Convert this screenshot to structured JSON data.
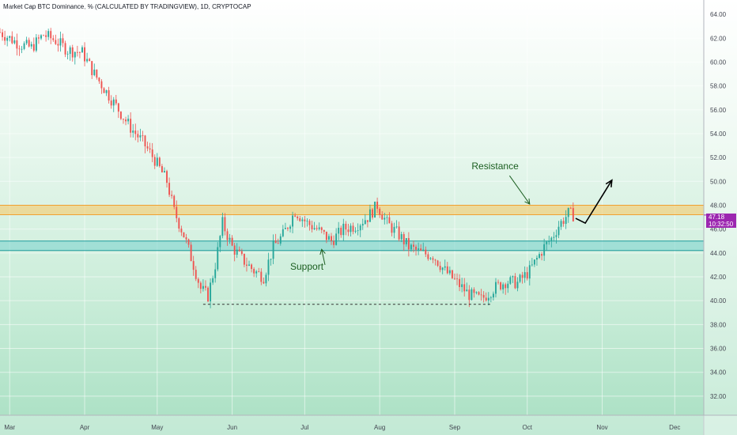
{
  "title": "Market Cap BTC Dominance, % (CALCULATED BY TRADINGVIEW), 1D, CRYPTOCAP",
  "colors": {
    "up": "#26a69a",
    "down": "#ef5350",
    "resistance_fill": "#f5c96b",
    "resistance_line": "#f0a030",
    "support_fill": "#7fd3cf",
    "support_line": "#1f9c9c",
    "price_label": "#9c27b0",
    "annotation": "#1b5e20"
  },
  "price_label": {
    "value": "47.18",
    "countdown": "10:32:50"
  },
  "chart_data": {
    "type": "candlestick",
    "x_tick_labels": [
      "Mar",
      "Apr",
      "May",
      "Jun",
      "Jul",
      "Aug",
      "Sep",
      "Oct",
      "Nov",
      "Dec"
    ],
    "y_tick_labels": [
      "32.00",
      "34.00",
      "36.00",
      "38.00",
      "40.00",
      "42.00",
      "44.00",
      "46.00",
      "48.00",
      "50.00",
      "52.00",
      "54.00",
      "56.00",
      "58.00",
      "60.00",
      "62.00",
      "64.00"
    ],
    "ylim": [
      30.4,
      65.2
    ],
    "grid": true,
    "last_value": 47.18,
    "price_path": [
      [
        "2021-02-25",
        62.5
      ],
      [
        "2021-03-01",
        62.0
      ],
      [
        "2021-03-05",
        61.5
      ],
      [
        "2021-03-10",
        61.2
      ],
      [
        "2021-03-15",
        62.3
      ],
      [
        "2021-03-20",
        61.8
      ],
      [
        "2021-03-25",
        61.0
      ],
      [
        "2021-03-31",
        60.8
      ],
      [
        "2021-04-05",
        59.0
      ],
      [
        "2021-04-10",
        57.5
      ],
      [
        "2021-04-15",
        56.0
      ],
      [
        "2021-04-20",
        54.5
      ],
      [
        "2021-04-25",
        53.3
      ],
      [
        "2021-04-30",
        51.8
      ],
      [
        "2021-05-05",
        50.0
      ],
      [
        "2021-05-08",
        47.5
      ],
      [
        "2021-05-12",
        45.5
      ],
      [
        "2021-05-16",
        43.0
      ],
      [
        "2021-05-19",
        41.0
      ],
      [
        "2021-05-22",
        40.4
      ],
      [
        "2021-05-25",
        43.0
      ],
      [
        "2021-05-28",
        46.5
      ],
      [
        "2021-06-01",
        44.5
      ],
      [
        "2021-06-05",
        43.5
      ],
      [
        "2021-06-10",
        42.5
      ],
      [
        "2021-06-14",
        42.0
      ],
      [
        "2021-06-18",
        44.5
      ],
      [
        "2021-06-22",
        45.5
      ],
      [
        "2021-06-27",
        47.5
      ],
      [
        "2021-07-02",
        46.5
      ],
      [
        "2021-07-06",
        46.0
      ],
      [
        "2021-07-12",
        45.0
      ],
      [
        "2021-07-17",
        46.0
      ],
      [
        "2021-07-22",
        46.3
      ],
      [
        "2021-07-27",
        47.0
      ],
      [
        "2021-07-31",
        48.0
      ],
      [
        "2021-08-04",
        46.5
      ],
      [
        "2021-08-09",
        45.5
      ],
      [
        "2021-08-13",
        44.5
      ],
      [
        "2021-08-18",
        44.0
      ],
      [
        "2021-08-23",
        43.8
      ],
      [
        "2021-08-28",
        42.5
      ],
      [
        "2021-09-02",
        41.5
      ],
      [
        "2021-09-07",
        40.5
      ],
      [
        "2021-09-12",
        40.1
      ],
      [
        "2021-09-17",
        41.0
      ],
      [
        "2021-09-22",
        41.6
      ],
      [
        "2021-09-27",
        41.5
      ],
      [
        "2021-10-02",
        42.5
      ],
      [
        "2021-10-05",
        43.5
      ],
      [
        "2021-10-08",
        44.5
      ],
      [
        "2021-10-11",
        45.2
      ],
      [
        "2021-10-14",
        46.3
      ],
      [
        "2021-10-18",
        47.3
      ],
      [
        "2021-10-20",
        47.18
      ]
    ],
    "zones": [
      {
        "kind": "resistance",
        "low": 47.2,
        "high": 48.0
      },
      {
        "kind": "support",
        "low": 44.2,
        "high": 45.0
      }
    ],
    "annotations": [
      {
        "text": "Resistance",
        "at": [
          "2021-09-08",
          51.0
        ],
        "arrow_to": [
          "2021-10-02",
          48.1
        ]
      },
      {
        "text": "Support",
        "at": [
          "2021-06-25",
          42.6
        ],
        "arrow_to": [
          "2021-07-08",
          44.3
        ]
      },
      {
        "text": "",
        "kind": "projection",
        "path": [
          [
            "2021-10-21",
            46.9
          ],
          [
            "2021-10-25",
            46.5
          ],
          [
            "2021-11-05",
            50.1
          ]
        ]
      },
      {
        "text": "",
        "kind": "dashed-level",
        "from": [
          "2021-05-20",
          39.7
        ],
        "to": [
          "2021-09-16",
          39.7
        ]
      }
    ]
  }
}
